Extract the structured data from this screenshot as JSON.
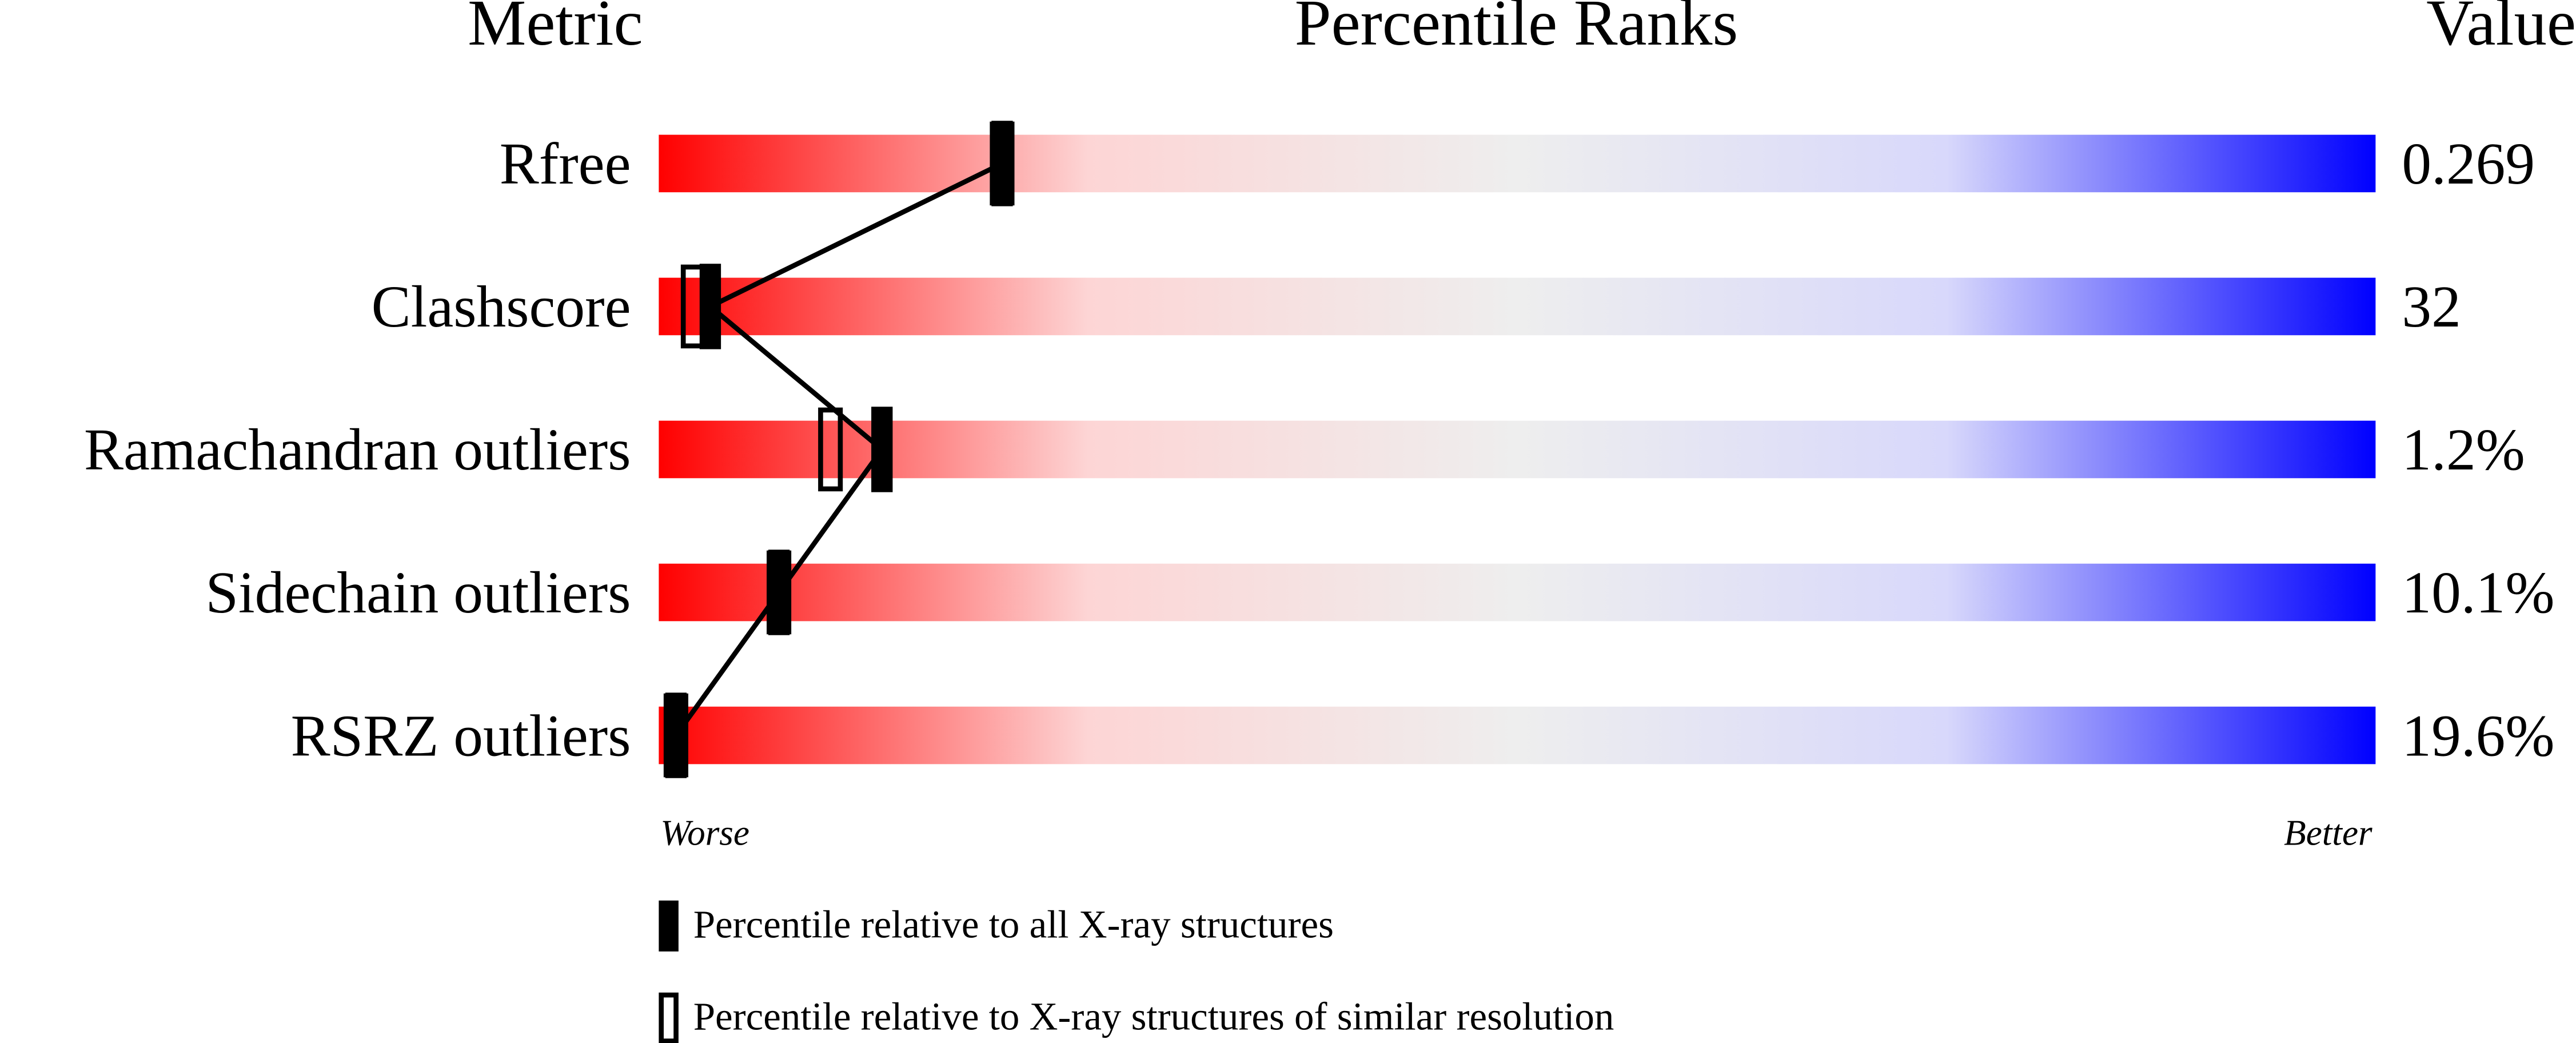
{
  "chart_data": {
    "type": "percentile-slider",
    "headers": [
      "Metric",
      "Percentile Ranks",
      "Value"
    ],
    "categories": [
      "Rfree",
      "Clashscore",
      "Ramachandran outliers",
      "Sidechain outliers",
      "RSRZ outliers"
    ],
    "metric_values": [
      "0.269",
      "32",
      "1.2%",
      "10.1%",
      "19.6%"
    ],
    "series": [
      {
        "name": "Percentile relative to all X-ray structures",
        "color": "#000000",
        "style": "filled",
        "values": [
          20,
          3,
          13,
          7,
          1
        ]
      },
      {
        "name": "Percentile relative to X-ray structures of similar resolution",
        "color": "#000000",
        "style": "open",
        "values": [
          20,
          2,
          10,
          7,
          1
        ]
      }
    ],
    "xlim": [
      0,
      100
    ],
    "axis_labels": [
      "Worse",
      "Better"
    ],
    "gradient": [
      "#ff0000",
      "#fdd5d5",
      "#eeeeee",
      "#d8d8fb",
      "#0000ff"
    ]
  }
}
